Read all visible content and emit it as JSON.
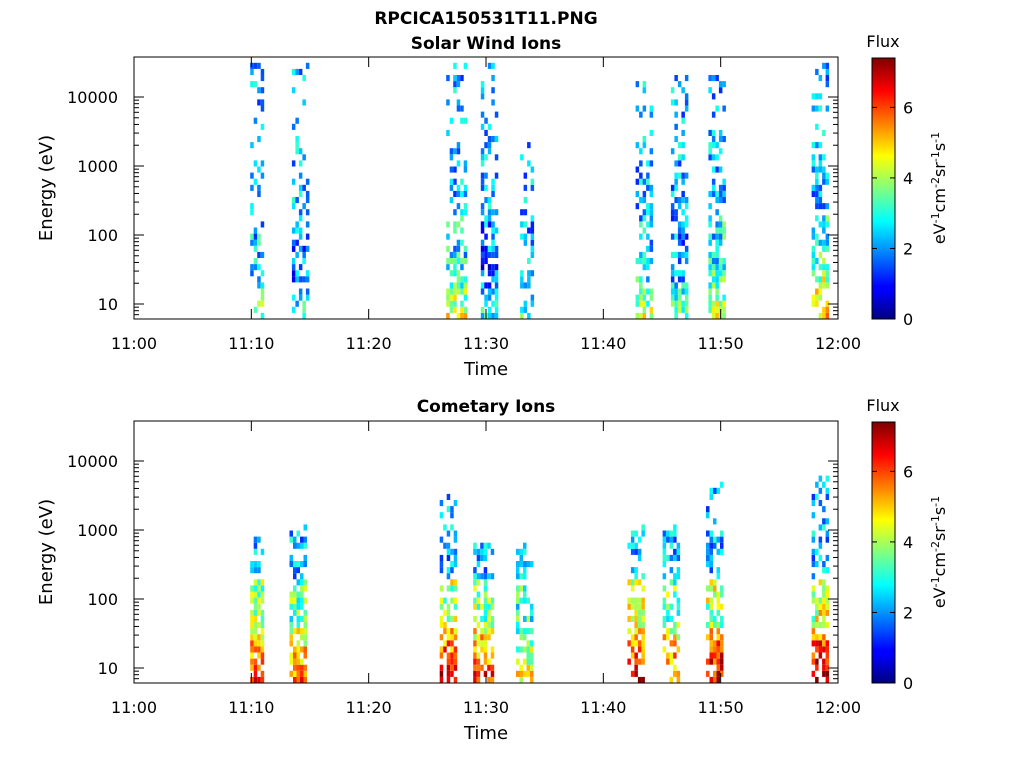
{
  "figure": {
    "title": "RPCICA150531T11.PNG"
  },
  "colorbar": {
    "title": "Flux",
    "label_main": "eV",
    "label_sup1": "-1",
    "label_mid1": "cm",
    "label_sup2": "-2",
    "label_mid2": "sr",
    "label_sup3": "-1",
    "label_mid3": "s",
    "label_sup4": "-1",
    "min": 0,
    "max": 7.4,
    "ticks": [
      "0",
      "2",
      "4",
      "6"
    ]
  },
  "chart_data": [
    {
      "type": "heatmap",
      "title": "Solar Wind Ions",
      "xlabel": "Time",
      "ylabel": "Energy (eV)",
      "x_ticks": [
        "11:00",
        "11:10",
        "11:20",
        "11:30",
        "11:40",
        "11:50",
        "12:00"
      ],
      "y_ticks": [
        "10",
        "100",
        "1000",
        "10000"
      ],
      "y_scale": "log",
      "ylim": [
        6,
        40000
      ],
      "xlim_minutes": [
        0,
        60
      ],
      "clusters": [
        {
          "t": 10.5,
          "w": 1.2,
          "emin": 6,
          "emax": 30000,
          "lowflux": 4.0,
          "density": 0.35
        },
        {
          "t": 14.2,
          "w": 1.4,
          "emin": 6,
          "emax": 30000,
          "lowflux": 3.2,
          "density": 0.35
        },
        {
          "t": 27.5,
          "w": 1.8,
          "emin": 6,
          "emax": 35000,
          "lowflux": 4.5,
          "density": 0.45
        },
        {
          "t": 30.3,
          "w": 1.6,
          "emin": 6,
          "emax": 35000,
          "lowflux": 3.0,
          "density": 0.45
        },
        {
          "t": 33.5,
          "w": 1.2,
          "emin": 6,
          "emax": 3000,
          "lowflux": 3.4,
          "density": 0.25
        },
        {
          "t": 43.5,
          "w": 1.6,
          "emin": 6,
          "emax": 30000,
          "lowflux": 4.2,
          "density": 0.4
        },
        {
          "t": 46.5,
          "w": 1.6,
          "emin": 6,
          "emax": 20000,
          "lowflux": 3.5,
          "density": 0.45
        },
        {
          "t": 49.7,
          "w": 1.4,
          "emin": 6,
          "emax": 20000,
          "lowflux": 4.5,
          "density": 0.55
        },
        {
          "t": 58.5,
          "w": 1.6,
          "emin": 6,
          "emax": 35000,
          "lowflux": 5.2,
          "density": 0.45
        }
      ]
    },
    {
      "type": "heatmap",
      "title": "Cometary Ions",
      "xlabel": "Time",
      "ylabel": "Energy (eV)",
      "x_ticks": [
        "11:00",
        "11:10",
        "11:20",
        "11:30",
        "11:40",
        "11:50",
        "12:00"
      ],
      "y_ticks": [
        "10",
        "100",
        "1000",
        "10000"
      ],
      "y_scale": "log",
      "ylim": [
        6,
        40000
      ],
      "xlim_minutes": [
        0,
        60
      ],
      "clusters": [
        {
          "t": 10.5,
          "w": 1.3,
          "emin": 6,
          "emax": 800,
          "lowflux": 6.5,
          "density": 0.55
        },
        {
          "t": 14.0,
          "w": 1.5,
          "emin": 6,
          "emax": 1300,
          "lowflux": 5.8,
          "density": 0.55
        },
        {
          "t": 26.8,
          "w": 1.6,
          "emin": 6,
          "emax": 3500,
          "lowflux": 6.8,
          "density": 0.5
        },
        {
          "t": 29.8,
          "w": 1.8,
          "emin": 6,
          "emax": 700,
          "lowflux": 6.2,
          "density": 0.5
        },
        {
          "t": 33.3,
          "w": 1.4,
          "emin": 6,
          "emax": 700,
          "lowflux": 5.0,
          "density": 0.45
        },
        {
          "t": 42.8,
          "w": 1.4,
          "emin": 6,
          "emax": 1100,
          "lowflux": 6.8,
          "density": 0.5
        },
        {
          "t": 45.8,
          "w": 1.6,
          "emin": 6,
          "emax": 1100,
          "lowflux": 6.0,
          "density": 0.4
        },
        {
          "t": 49.5,
          "w": 1.6,
          "emin": 6,
          "emax": 5000,
          "lowflux": 6.8,
          "density": 0.55
        },
        {
          "t": 58.5,
          "w": 1.6,
          "emin": 6,
          "emax": 6000,
          "lowflux": 7.2,
          "density": 0.55
        }
      ]
    }
  ]
}
